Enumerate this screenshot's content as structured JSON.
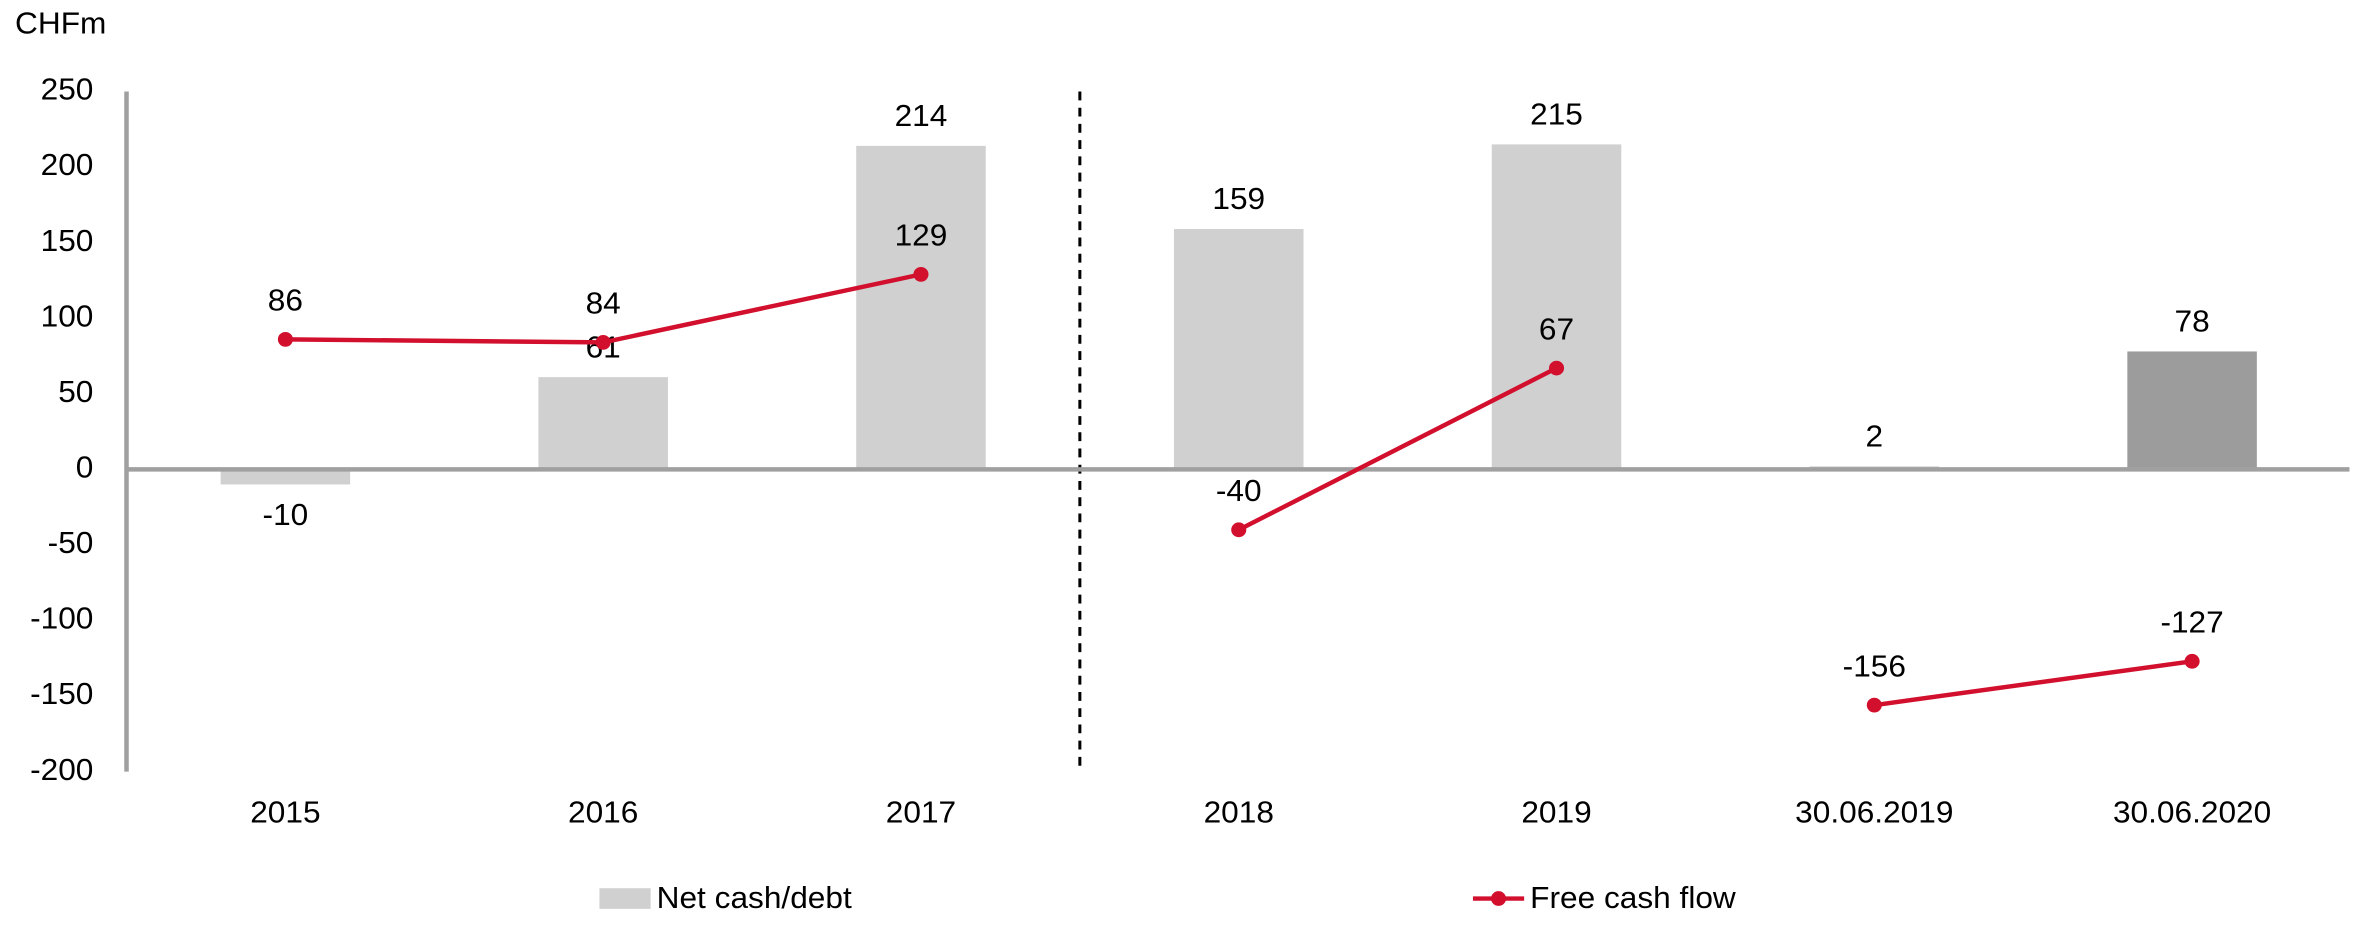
{
  "chart_data": {
    "type": "bar",
    "y_unit_label": "CHFm",
    "categories": [
      "2015",
      "2016",
      "2017",
      "2018",
      "2019",
      "30.06.2019",
      "30.06.2020"
    ],
    "series": [
      {
        "name": "Net cash/debt",
        "type": "bar",
        "color": "#d0d0d0",
        "colors": [
          "#d0d0d0",
          "#d0d0d0",
          "#d0d0d0",
          "#d0d0d0",
          "#d0d0d0",
          "#d0d0d0",
          "#9c9c9c"
        ],
        "values": [
          -10,
          61,
          214,
          159,
          215,
          2,
          78
        ]
      },
      {
        "name": "Free cash flow",
        "type": "line",
        "color": "#d2102e",
        "values": [
          86,
          84,
          129,
          -40,
          67,
          -156,
          -127
        ],
        "line_breaks_before": [
          3,
          5
        ]
      }
    ],
    "divider_after": 2,
    "ylim": [
      -200,
      250
    ],
    "yticks": [
      -200,
      -150,
      -100,
      -50,
      0,
      50,
      100,
      150,
      200,
      250
    ],
    "grid": false,
    "legend": "bottom"
  }
}
